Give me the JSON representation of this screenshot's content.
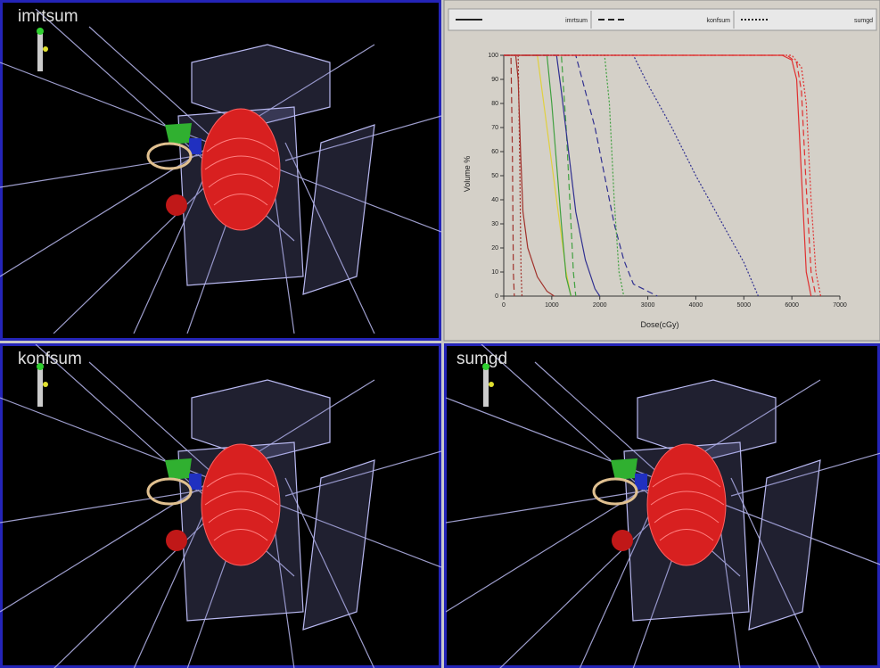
{
  "views": [
    {
      "label": "imrtsum"
    },
    {
      "label": "konfsum"
    },
    {
      "label": "sumgd"
    }
  ],
  "chart_data": {
    "type": "line",
    "legend": [
      {
        "name": "imrtsum",
        "dash": "solid"
      },
      {
        "name": "konfsum",
        "dash": "dashed"
      },
      {
        "name": "sumgd",
        "dash": "dotted"
      }
    ],
    "xlabel": "Dose(cGy)",
    "ylabel": "Volume %",
    "xlim": [
      0,
      7000
    ],
    "xticks": [
      0,
      1000,
      2000,
      3000,
      4000,
      5000,
      6000,
      7000
    ],
    "ylim": [
      0,
      100
    ],
    "yticks": [
      0,
      10,
      20,
      30,
      40,
      50,
      60,
      70,
      80,
      90,
      100
    ],
    "series": [
      {
        "color": "#a0302a",
        "dash": "solid",
        "x": [
          0,
          250,
          300,
          350,
          400,
          500,
          700,
          900,
          1050
        ],
        "values": [
          100,
          100,
          90,
          60,
          35,
          20,
          8,
          2,
          0
        ]
      },
      {
        "color": "#a0302a",
        "dash": "dashed",
        "x": [
          0,
          150,
          180,
          200,
          220
        ],
        "values": [
          100,
          100,
          60,
          10,
          0
        ]
      },
      {
        "color": "#a0302a",
        "dash": "dotted",
        "x": [
          0,
          300,
          330,
          360,
          380
        ],
        "values": [
          100,
          100,
          60,
          10,
          0
        ]
      },
      {
        "color": "#e0d040",
        "dash": "solid",
        "x": [
          0,
          700,
          800,
          900,
          1100,
          1300,
          1400
        ],
        "values": [
          100,
          100,
          85,
          70,
          40,
          10,
          0
        ]
      },
      {
        "color": "#40a040",
        "dash": "solid",
        "x": [
          0,
          900,
          1000,
          1100,
          1200,
          1300,
          1400
        ],
        "values": [
          100,
          100,
          80,
          55,
          30,
          8,
          0
        ]
      },
      {
        "color": "#40a040",
        "dash": "dashed",
        "x": [
          0,
          1200,
          1300,
          1400,
          1450,
          1500
        ],
        "values": [
          100,
          100,
          70,
          30,
          10,
          0
        ]
      },
      {
        "color": "#303090",
        "dash": "solid",
        "x": [
          0,
          1100,
          1200,
          1350,
          1500,
          1700,
          1900,
          2000
        ],
        "values": [
          100,
          100,
          85,
          60,
          35,
          15,
          3,
          0
        ]
      },
      {
        "color": "#303090",
        "dash": "dashed",
        "x": [
          0,
          1500,
          1700,
          1900,
          2100,
          2300,
          2500,
          2700,
          3000,
          3200
        ],
        "values": [
          100,
          100,
          85,
          70,
          50,
          30,
          15,
          5,
          2,
          0
        ]
      },
      {
        "color": "#40a040",
        "dash": "dotted",
        "x": [
          0,
          2100,
          2200,
          2300,
          2400,
          2500
        ],
        "values": [
          100,
          100,
          80,
          40,
          10,
          0
        ]
      },
      {
        "color": "#303090",
        "dash": "dotted",
        "x": [
          0,
          2700,
          3000,
          3500,
          4000,
          4500,
          5000,
          5300
        ],
        "values": [
          100,
          100,
          88,
          70,
          50,
          32,
          14,
          0
        ]
      },
      {
        "color": "#e03030",
        "dash": "solid",
        "x": [
          0,
          5800,
          6000,
          6100,
          6200,
          6300,
          6400
        ],
        "values": [
          100,
          100,
          98,
          90,
          50,
          10,
          0
        ]
      },
      {
        "color": "#e03030",
        "dash": "dashed",
        "x": [
          0,
          5900,
          6100,
          6200,
          6300,
          6400,
          6500
        ],
        "values": [
          100,
          100,
          97,
          85,
          45,
          10,
          0
        ]
      },
      {
        "color": "#e03030",
        "dash": "dotted",
        "x": [
          0,
          6000,
          6200,
          6300,
          6400,
          6500,
          6600
        ],
        "values": [
          100,
          100,
          95,
          80,
          40,
          10,
          0
        ]
      }
    ]
  }
}
